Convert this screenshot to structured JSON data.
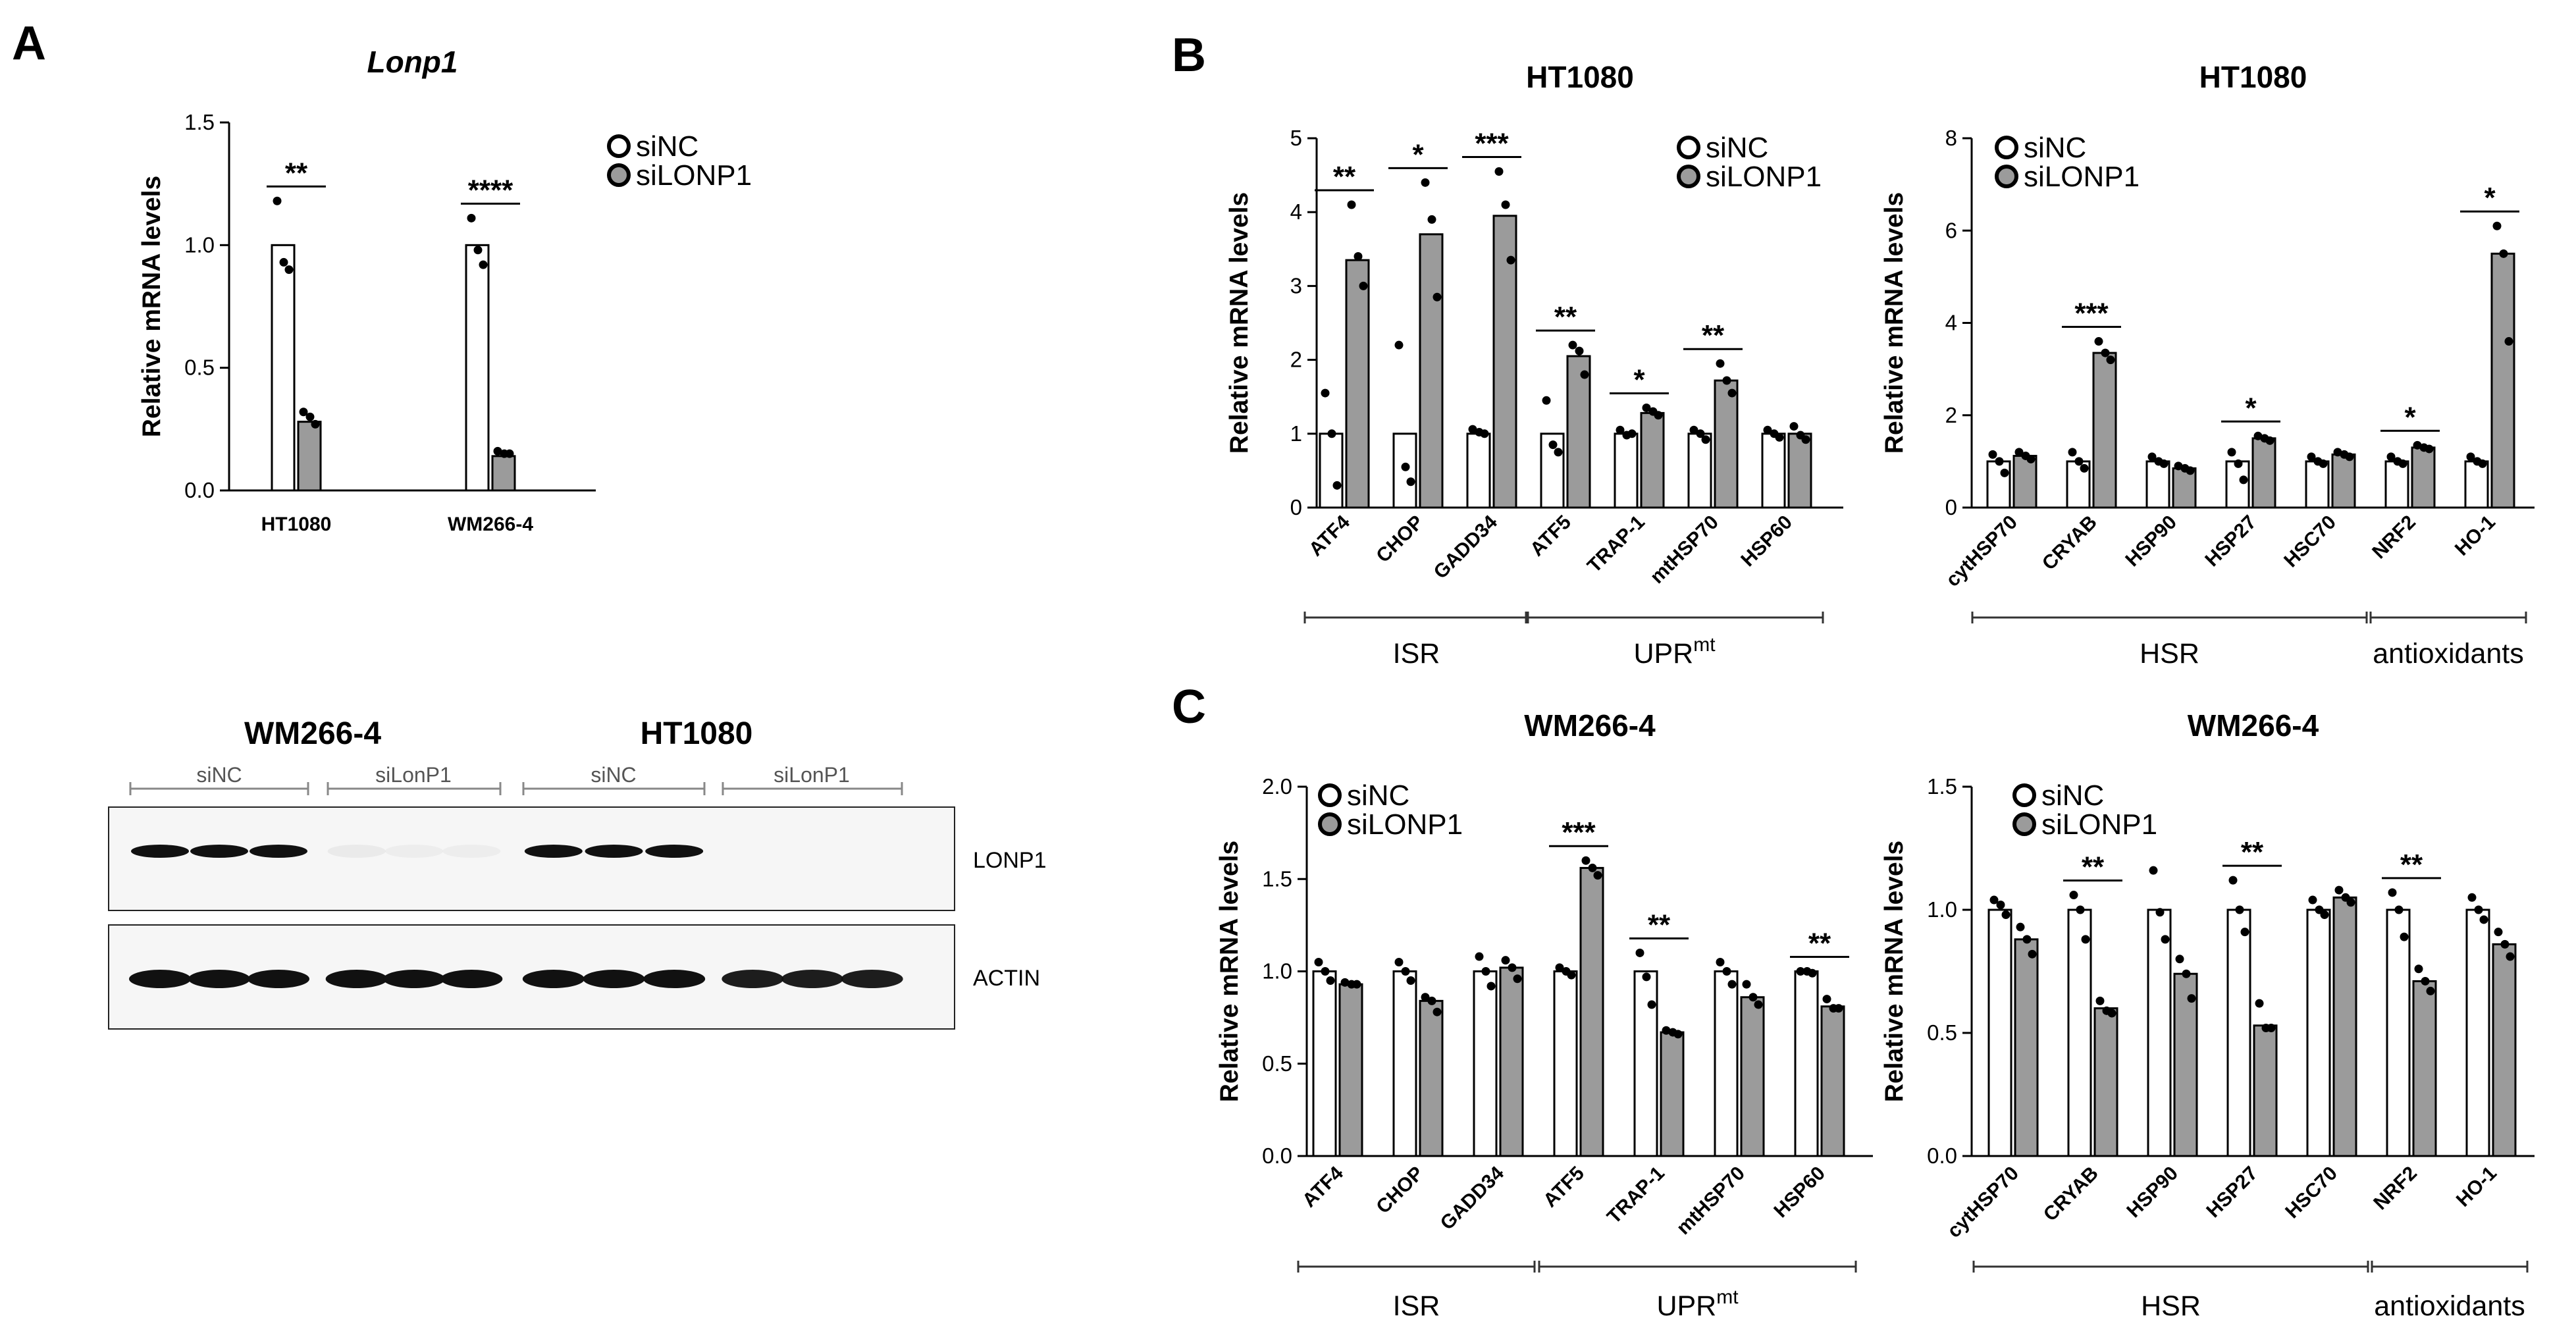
{
  "panel_labels": [
    "A",
    "B",
    "C"
  ],
  "legend": {
    "control": "siNC",
    "knockdown": "siLONP1"
  },
  "colors": {
    "control": "#ffffff",
    "knockdown": "#9b9b9b",
    "stroke": "#000000",
    "dot": "#000000"
  },
  "chart_data": [
    {
      "id": "a",
      "type": "bar",
      "title": "Lonp1",
      "ylabel": "Relative mRNA levels",
      "ylim": [
        0,
        1.5
      ],
      "yticks": [
        "0.0",
        "0.5",
        "1.0",
        "1.5"
      ],
      "categories": [
        "HT1080",
        "WM266-4"
      ],
      "legend": [
        "siNC",
        "siLONP1"
      ],
      "series": [
        {
          "name": "siNC",
          "values": [
            1.0,
            1.0
          ],
          "points": [
            [
              1.18,
              0.93,
              0.9
            ],
            [
              1.11,
              0.98,
              0.92
            ]
          ]
        },
        {
          "name": "siLONP1",
          "values": [
            0.28,
            0.14
          ],
          "points": [
            [
              0.32,
              0.3,
              0.27
            ],
            [
              0.16,
              0.15,
              0.15
            ]
          ]
        }
      ],
      "significance": [
        "**",
        "****"
      ],
      "groups": []
    },
    {
      "id": "b1",
      "type": "bar",
      "title": "HT1080",
      "ylabel": "Relative mRNA levels",
      "ylim": [
        0,
        5
      ],
      "yticks": [
        "0",
        "1",
        "2",
        "3",
        "4",
        "5"
      ],
      "categories": [
        "ATF4",
        "CHOP",
        "GADD34",
        "ATF5",
        "TRAP-1",
        "mtHSP70",
        "HSP60"
      ],
      "legend": [
        "siNC",
        "siLONP1"
      ],
      "series": [
        {
          "name": "siNC",
          "values": [
            1.0,
            1.0,
            1.0,
            1.0,
            1.0,
            1.0,
            1.0
          ],
          "points": [
            [
              1.55,
              1.0,
              0.3
            ],
            [
              2.2,
              0.55,
              0.35
            ],
            [
              1.06,
              1.02,
              1.0
            ],
            [
              1.45,
              0.85,
              0.75
            ],
            [
              1.05,
              0.98,
              1.0
            ],
            [
              1.05,
              1.0,
              0.92
            ],
            [
              1.05,
              1.0,
              0.95
            ]
          ]
        },
        {
          "name": "siLONP1",
          "values": [
            3.35,
            3.7,
            3.95,
            2.05,
            1.28,
            1.72,
            1.0
          ],
          "points": [
            [
              4.1,
              3.4,
              3.0
            ],
            [
              4.4,
              3.9,
              2.85
            ],
            [
              4.55,
              4.1,
              3.35
            ],
            [
              2.2,
              2.12,
              1.8
            ],
            [
              1.35,
              1.3,
              1.25
            ],
            [
              1.95,
              1.72,
              1.55
            ],
            [
              1.1,
              0.98,
              0.92
            ]
          ]
        }
      ],
      "significance": [
        "**",
        "*",
        "***",
        "**",
        "*",
        "**",
        ""
      ],
      "groups": [
        {
          "label": "ISR",
          "sup": "",
          "start": 0,
          "end": 2
        },
        {
          "label": "UPR",
          "sup": "mt",
          "start": 3,
          "end": 6
        }
      ]
    },
    {
      "id": "b2",
      "type": "bar",
      "title": "HT1080",
      "ylabel": "Relative mRNA levels",
      "ylim": [
        0,
        8
      ],
      "yticks": [
        "0",
        "2",
        "4",
        "6",
        "8"
      ],
      "categories": [
        "cytHSP70",
        "CRYAB",
        "HSP90",
        "HSP27",
        "HSC70",
        "NRF2",
        "HO-1"
      ],
      "legend": [
        "siNC",
        "siLONP1"
      ],
      "series": [
        {
          "name": "siNC",
          "values": [
            1.0,
            1.0,
            1.0,
            1.0,
            1.0,
            1.0,
            1.0
          ],
          "points": [
            [
              1.15,
              1.0,
              0.75
            ],
            [
              1.2,
              1.0,
              0.85
            ],
            [
              1.1,
              1.0,
              0.95
            ],
            [
              1.2,
              0.95,
              0.6
            ],
            [
              1.1,
              1.0,
              0.95
            ],
            [
              1.1,
              1.0,
              0.95
            ],
            [
              1.1,
              1.0,
              0.95
            ]
          ]
        },
        {
          "name": "siLONP1",
          "values": [
            1.12,
            3.35,
            0.85,
            1.5,
            1.15,
            1.3,
            5.5
          ],
          "points": [
            [
              1.2,
              1.12,
              1.05
            ],
            [
              3.6,
              3.35,
              3.2
            ],
            [
              0.9,
              0.85,
              0.8
            ],
            [
              1.55,
              1.5,
              1.45
            ],
            [
              1.2,
              1.15,
              1.1
            ],
            [
              1.35,
              1.3,
              1.27
            ],
            [
              6.1,
              5.5,
              3.6
            ]
          ]
        }
      ],
      "significance": [
        "",
        "***",
        "",
        "*",
        "",
        "*",
        "*"
      ],
      "groups": [
        {
          "label": "HSR",
          "sup": "",
          "start": 0,
          "end": 4
        },
        {
          "label": "antioxidants",
          "sup": "",
          "start": 5,
          "end": 6
        }
      ]
    },
    {
      "id": "c1",
      "type": "bar",
      "title": "WM266-4",
      "ylabel": "Relative mRNA levels",
      "ylim": [
        0,
        2.0
      ],
      "yticks": [
        "0.0",
        "0.5",
        "1.0",
        "1.5",
        "2.0"
      ],
      "categories": [
        "ATF4",
        "CHOP",
        "GADD34",
        "ATF5",
        "TRAP-1",
        "mtHSP70",
        "HSP60"
      ],
      "legend": [
        "siNC",
        "siLONP1"
      ],
      "series": [
        {
          "name": "siNC",
          "values": [
            1.0,
            1.0,
            1.0,
            1.0,
            1.0,
            1.0,
            1.0
          ],
          "points": [
            [
              1.05,
              1.0,
              0.95
            ],
            [
              1.05,
              1.0,
              0.95
            ],
            [
              1.08,
              1.0,
              0.92
            ],
            [
              1.02,
              1.0,
              0.98
            ],
            [
              1.1,
              0.97,
              0.82
            ],
            [
              1.05,
              1.0,
              0.93
            ],
            [
              1.0,
              1.0,
              0.99
            ]
          ]
        },
        {
          "name": "siLONP1",
          "values": [
            0.93,
            0.84,
            1.02,
            1.56,
            0.67,
            0.86,
            0.81
          ],
          "points": [
            [
              0.94,
              0.93,
              0.93
            ],
            [
              0.86,
              0.84,
              0.78
            ],
            [
              1.06,
              1.02,
              0.96
            ],
            [
              1.6,
              1.56,
              1.52
            ],
            [
              0.68,
              0.67,
              0.66
            ],
            [
              0.93,
              0.86,
              0.82
            ],
            [
              0.85,
              0.8,
              0.8
            ]
          ]
        }
      ],
      "significance": [
        "",
        "",
        "",
        "***",
        "**",
        "",
        "**"
      ],
      "groups": [
        {
          "label": "ISR",
          "sup": "",
          "start": 0,
          "end": 2
        },
        {
          "label": "UPR",
          "sup": "mt",
          "start": 3,
          "end": 6
        }
      ]
    },
    {
      "id": "c2",
      "type": "bar",
      "title": "WM266-4",
      "ylabel": "Relative mRNA levels",
      "ylim": [
        0,
        1.5
      ],
      "yticks": [
        "0.0",
        "0.5",
        "1.0",
        "1.5"
      ],
      "categories": [
        "cytHSP70",
        "CRYAB",
        "HSP90",
        "HSP27",
        "HSC70",
        "NRF2",
        "HO-1"
      ],
      "legend": [
        "siNC",
        "siLONP1"
      ],
      "series": [
        {
          "name": "siNC",
          "values": [
            1.0,
            1.0,
            1.0,
            1.0,
            1.0,
            1.0,
            1.0
          ],
          "points": [
            [
              1.04,
              1.02,
              0.98
            ],
            [
              1.06,
              1.0,
              0.88
            ],
            [
              1.16,
              0.99,
              0.88
            ],
            [
              1.12,
              1.0,
              0.91
            ],
            [
              1.04,
              1.0,
              0.98
            ],
            [
              1.07,
              1.0,
              0.89
            ],
            [
              1.05,
              1.0,
              0.96
            ]
          ]
        },
        {
          "name": "siLONP1",
          "values": [
            0.88,
            0.6,
            0.74,
            0.53,
            1.05,
            0.71,
            0.86
          ],
          "points": [
            [
              0.93,
              0.88,
              0.82
            ],
            [
              0.63,
              0.59,
              0.58
            ],
            [
              0.8,
              0.74,
              0.64
            ],
            [
              0.62,
              0.52,
              0.52
            ],
            [
              1.08,
              1.05,
              1.03
            ],
            [
              0.76,
              0.71,
              0.67
            ],
            [
              0.91,
              0.86,
              0.81
            ]
          ]
        }
      ],
      "significance": [
        "",
        "**",
        "",
        "**",
        "",
        "**",
        ""
      ],
      "groups": [
        {
          "label": "HSR",
          "sup": "",
          "start": 0,
          "end": 4
        },
        {
          "label": "antioxidants",
          "sup": "",
          "start": 5,
          "end": 6
        }
      ]
    }
  ],
  "western_blot": {
    "cell_lines": [
      "WM266-4",
      "HT1080"
    ],
    "lanes": [
      "siNC",
      "siLonP1",
      "siNC",
      "siLonP1"
    ],
    "proteins": [
      "LONP1",
      "ACTIN"
    ],
    "lonp1_intensity": [
      1,
      1,
      1,
      0.05,
      0.04,
      0.04,
      1,
      1,
      1,
      0,
      0,
      0
    ],
    "actin_intensity": [
      1,
      1,
      1,
      1,
      1,
      1,
      1,
      1,
      1,
      0.95,
      0.95,
      0.95
    ]
  }
}
